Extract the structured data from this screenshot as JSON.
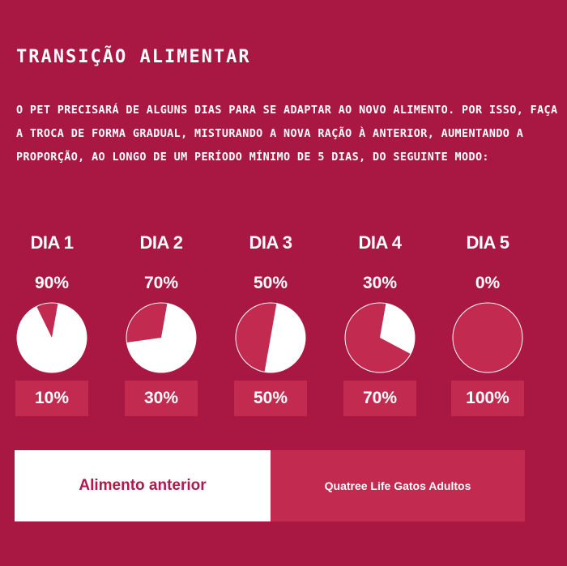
{
  "header": {
    "title": "TRANSIÇÃO ALIMENTAR",
    "intro": "O PET PRECISARÁ DE ALGUNS DIAS PARA SE ADAPTAR AO NOVO ALIMENTO. POR ISSO, FAÇA A TROCA DE FORMA GRADUAL, MISTURANDO A NOVA RAÇÃO À ANTERIOR, AUMENTANDO A PROPORÇÃO, AO LONGO DE UM PERÍODO MÍNIMO DE 5 DIAS, DO SEGUINTE MODO:"
  },
  "days": [
    {
      "label": "DIA 1",
      "old_pct": "90%",
      "new_pct": "10%"
    },
    {
      "label": "DIA 2",
      "old_pct": "70%",
      "new_pct": "30%"
    },
    {
      "label": "DIA 3",
      "old_pct": "50%",
      "new_pct": "50%"
    },
    {
      "label": "DIA 4",
      "old_pct": "30%",
      "new_pct": "70%"
    },
    {
      "label": "DIA 5",
      "old_pct": "0%",
      "new_pct": "100%"
    }
  ],
  "chart_data": {
    "type": "pie",
    "categories": [
      "DIA 1",
      "DIA 2",
      "DIA 3",
      "DIA 4",
      "DIA 5"
    ],
    "series": [
      {
        "name": "Alimento anterior",
        "values": [
          90,
          70,
          50,
          30,
          0
        ]
      },
      {
        "name": "Quatree Life Gatos Adultos",
        "values": [
          10,
          30,
          50,
          70,
          100
        ]
      }
    ]
  },
  "legend": {
    "old_label": "Alimento anterior",
    "new_label": "Quatree Life Gatos Adultos"
  },
  "colors": {
    "background": "#a91743",
    "new_food": "#c32a4f",
    "old_food": "#ffffff"
  }
}
